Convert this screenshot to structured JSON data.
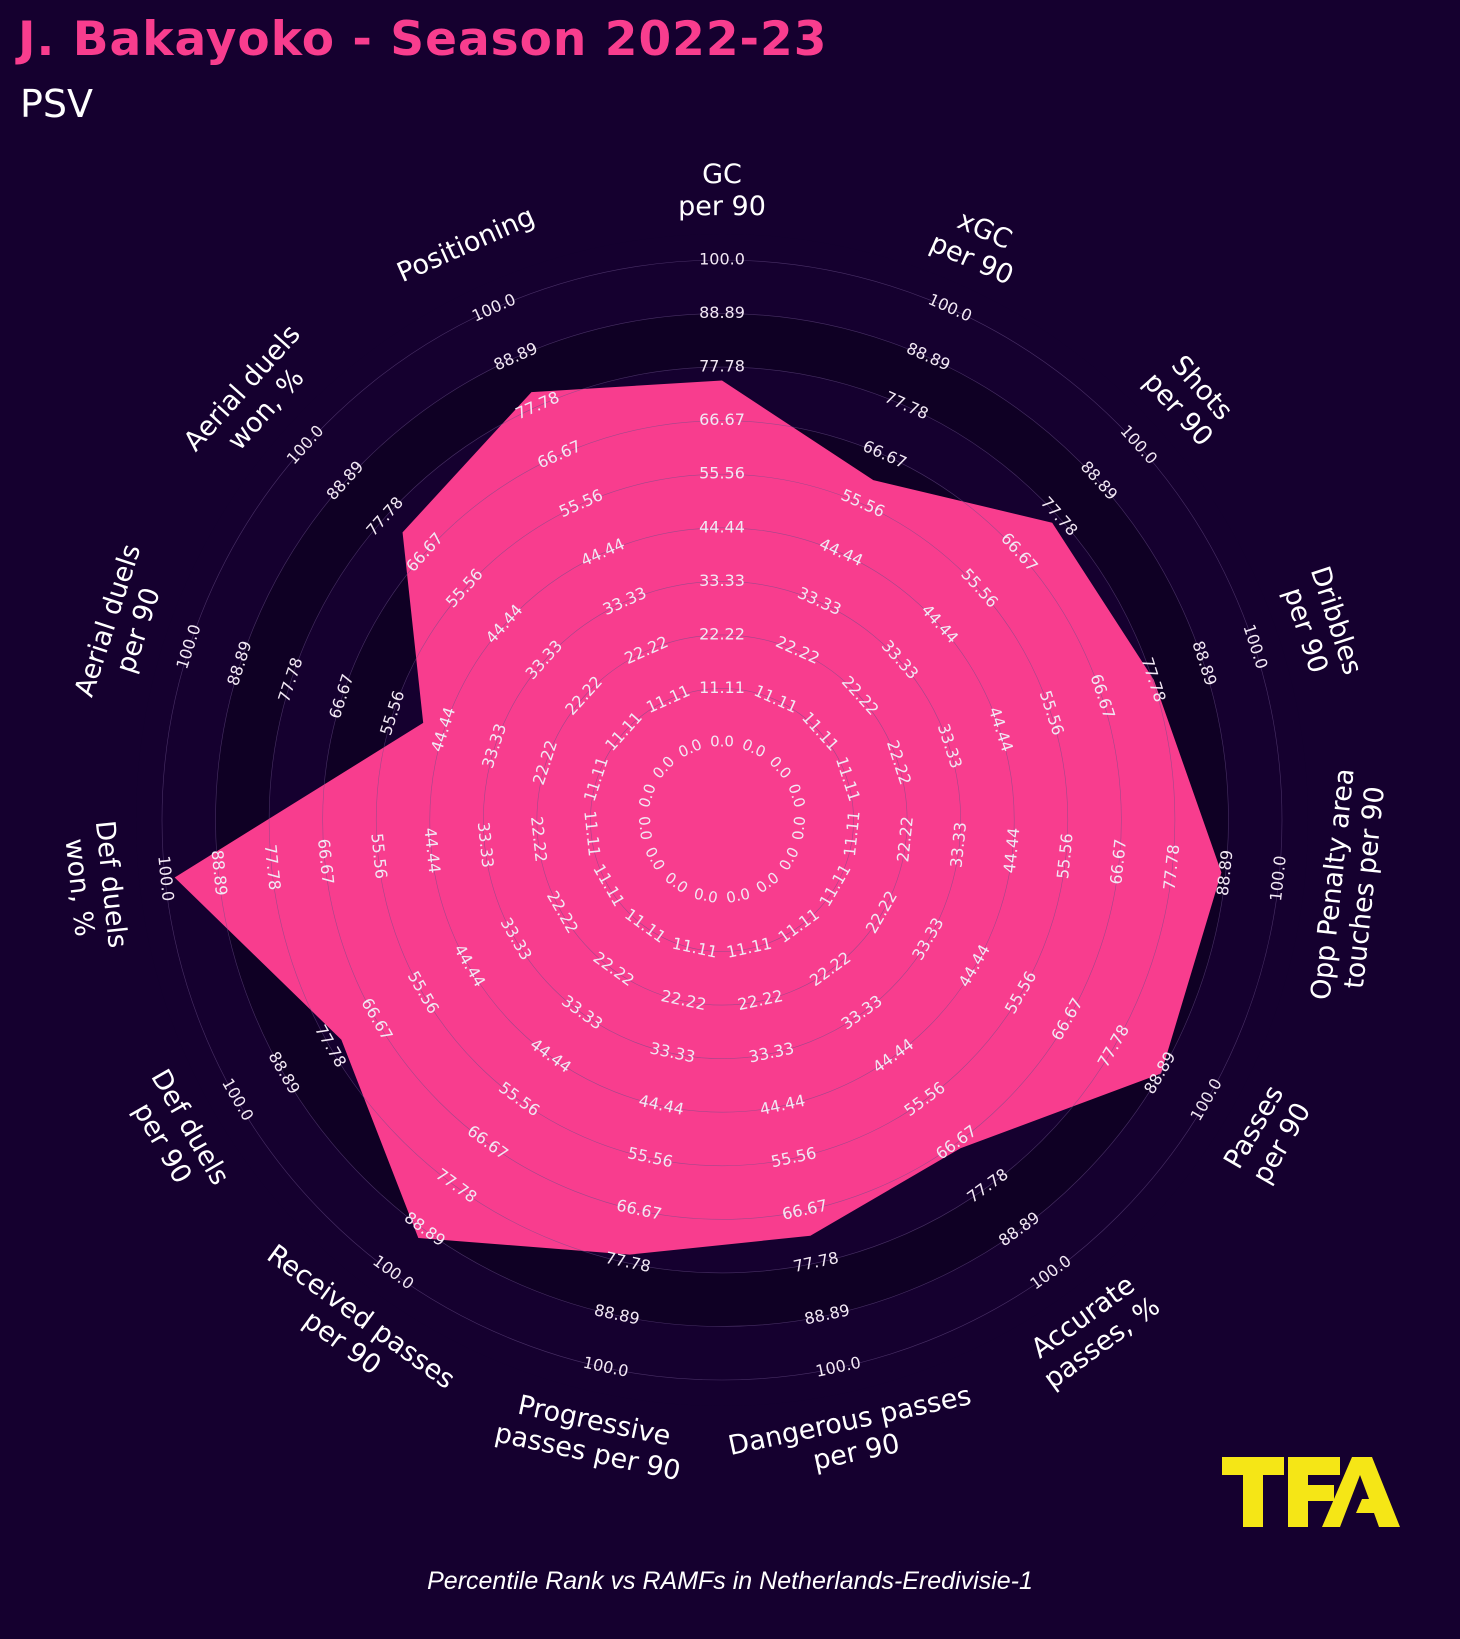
{
  "title": "J. Bakayoko - Season 2022-23",
  "subtitle": "PSV",
  "footer": "Percentile Rank vs RAMFs in Netherlands-Eredivisie-1",
  "logo_text": "TFA",
  "colors": {
    "background": "#15002f",
    "fill": "#f83d8e",
    "band_dark": "#0f0024",
    "band_light": "#15002f",
    "logo": "#f5e616",
    "title": "#f83d8e"
  },
  "chart_data": {
    "type": "radar",
    "range": [
      0,
      100
    ],
    "ticks": [
      "0.0",
      "11.11",
      "22.22",
      "33.33",
      "44.44",
      "55.56",
      "66.67",
      "77.78",
      "88.89",
      "100.0"
    ],
    "categories": [
      "GC\nper 90",
      "xGC\nper 90",
      "Shots\nper 90",
      "Dribbles\nper 90",
      "Opp Penalty area\ntouches per 90",
      "Passes\nper 90",
      "Accurate\npasses, %",
      "Dangerous passes\nper 90",
      "Progressive\npasses per 90",
      "Received passes\nper 90",
      "Def duels\nper 90",
      "Def duels\nwon, %",
      "Aerial duels\nper 90",
      "Aerial duels\nwon, %",
      "Positioning"
    ],
    "values": [
      75,
      61,
      76,
      78,
      88,
      89,
      68,
      72,
      76,
      91,
      75,
      98,
      49,
      73,
      81
    ]
  }
}
